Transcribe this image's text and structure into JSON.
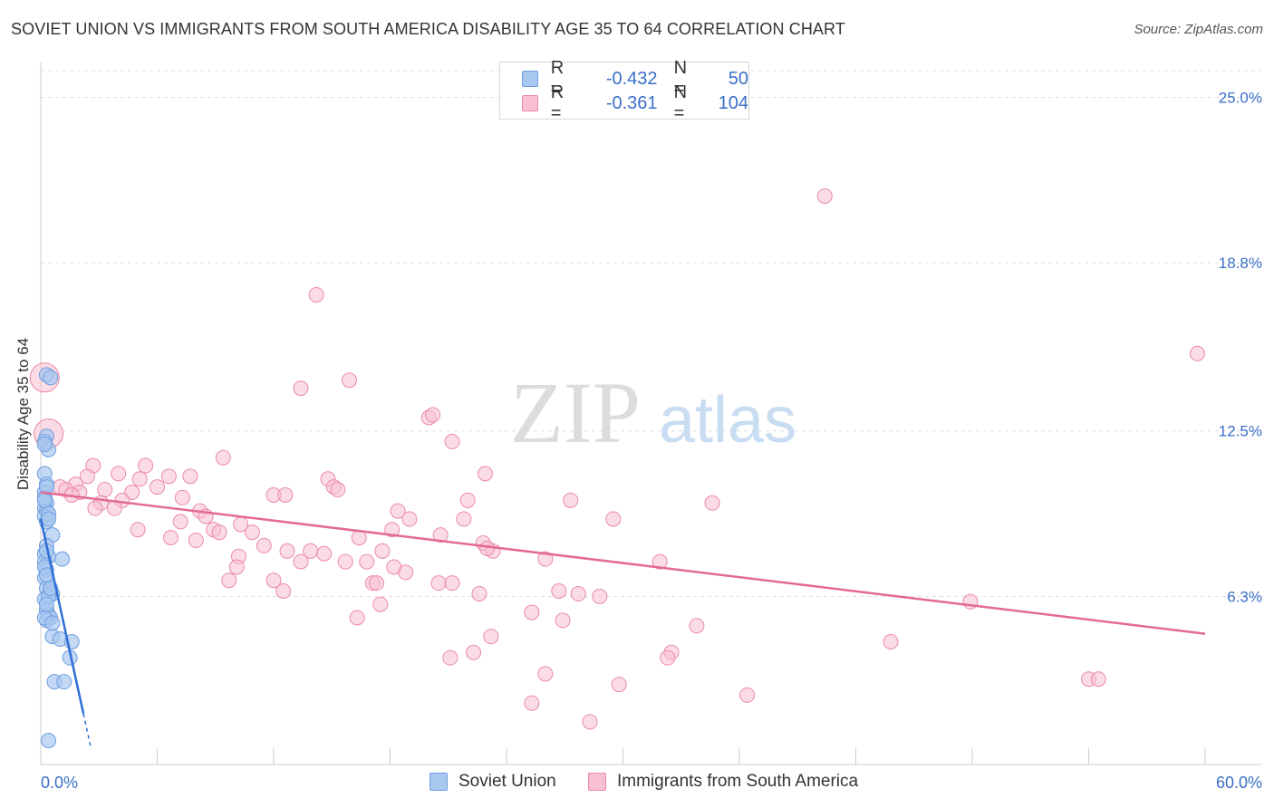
{
  "title": "SOVIET UNION VS IMMIGRANTS FROM SOUTH AMERICA DISABILITY AGE 35 TO 64 CORRELATION CHART",
  "source": "Source: ZipAtlas.com",
  "watermark": {
    "zip": "ZIP",
    "atlas": "atlas"
  },
  "legend": {
    "rows": [
      {
        "r_label": "R =",
        "r_value": "-0.432",
        "n_label": "N =",
        "n_value": "50",
        "color": "#a8c8f0",
        "border": "#6f9ee0"
      },
      {
        "r_label": "R =",
        "r_value": "-0.361",
        "n_label": "N =",
        "n_value": "104",
        "color": "#f8c0d0",
        "border": "#ea8aa8"
      }
    ]
  },
  "bottom_legend": [
    {
      "label": "Soviet Union",
      "color": "#a8c8f0",
      "border": "#6f9ee0"
    },
    {
      "label": "Immigrants from South America",
      "color": "#f8c0d0",
      "border": "#ea8aa8"
    }
  ],
  "chart_data": {
    "type": "scatter",
    "title": "SOVIET UNION VS IMMIGRANTS FROM SOUTH AMERICA DISABILITY AGE 35 TO 64 CORRELATION CHART",
    "xlabel": "",
    "ylabel": "Disability Age 35 to 64",
    "xlim": [
      0,
      60
    ],
    "ylim": [
      0,
      26
    ],
    "x_tick_labels": {
      "min": "0.0%",
      "max": "60.0%"
    },
    "y_ticks": [
      {
        "value": 6.3,
        "label": "6.3%"
      },
      {
        "value": 12.5,
        "label": "12.5%"
      },
      {
        "value": 18.8,
        "label": "18.8%"
      },
      {
        "value": 25.0,
        "label": "25.0%"
      }
    ],
    "grid": true,
    "series": [
      {
        "name": "Soviet Union",
        "color": "#6f9ee0",
        "fill": "#a8c8f0",
        "trend": {
          "x0": 0,
          "y0": 9.2,
          "x1": 2.2,
          "y1": 1.9,
          "dash_to_x": 2.6,
          "line_color": "#2d6fd6"
        },
        "points": [
          [
            0.3,
            14.6
          ],
          [
            0.5,
            14.5
          ],
          [
            0.3,
            12.3
          ],
          [
            0.2,
            12.1
          ],
          [
            0.4,
            11.8
          ],
          [
            0.2,
            10.9
          ],
          [
            0.3,
            10.5
          ],
          [
            0.2,
            10.2
          ],
          [
            0.3,
            9.8
          ],
          [
            0.2,
            9.6
          ],
          [
            0.3,
            9.5
          ],
          [
            0.2,
            9.3
          ],
          [
            0.3,
            9.1
          ],
          [
            0.6,
            8.6
          ],
          [
            0.3,
            8.2
          ],
          [
            0.2,
            7.9
          ],
          [
            0.4,
            7.8
          ],
          [
            0.2,
            7.6
          ],
          [
            1.1,
            7.7
          ],
          [
            0.3,
            7.3
          ],
          [
            0.2,
            7.0
          ],
          [
            0.3,
            6.6
          ],
          [
            0.5,
            6.5
          ],
          [
            0.6,
            6.4
          ],
          [
            0.2,
            6.2
          ],
          [
            0.3,
            5.8
          ],
          [
            0.4,
            5.6
          ],
          [
            0.5,
            5.5
          ],
          [
            0.3,
            5.4
          ],
          [
            0.6,
            4.8
          ],
          [
            1.0,
            4.7
          ],
          [
            1.6,
            4.6
          ],
          [
            1.5,
            4.0
          ],
          [
            0.7,
            3.1
          ],
          [
            1.2,
            3.1
          ],
          [
            0.4,
            0.9
          ],
          [
            0.2,
            10.0
          ],
          [
            0.2,
            9.9
          ],
          [
            0.3,
            8.0
          ],
          [
            0.4,
            6.3
          ],
          [
            0.2,
            5.5
          ],
          [
            0.3,
            10.4
          ],
          [
            0.4,
            9.4
          ],
          [
            0.2,
            7.4
          ],
          [
            0.5,
            6.6
          ],
          [
            0.3,
            7.1
          ],
          [
            0.6,
            5.3
          ],
          [
            0.2,
            12.0
          ],
          [
            0.4,
            9.2
          ],
          [
            0.3,
            6.0
          ]
        ]
      },
      {
        "name": "Immigrants from South America",
        "color": "#ea8aa8",
        "fill": "#f8c0d0",
        "trend": {
          "x0": 0,
          "y0": 10.2,
          "x1": 60,
          "y1": 4.9,
          "line_color": "#e36a93"
        },
        "points": [
          [
            40.4,
            21.3
          ],
          [
            14.2,
            17.6
          ],
          [
            59.6,
            15.4
          ],
          [
            15.9,
            14.4
          ],
          [
            13.4,
            14.1
          ],
          [
            20.0,
            13.0
          ],
          [
            20.2,
            13.1
          ],
          [
            21.2,
            12.1
          ],
          [
            9.4,
            11.5
          ],
          [
            2.7,
            11.2
          ],
          [
            5.4,
            11.2
          ],
          [
            22.9,
            10.9
          ],
          [
            2.4,
            10.8
          ],
          [
            4.0,
            10.9
          ],
          [
            5.1,
            10.7
          ],
          [
            6.6,
            10.8
          ],
          [
            7.7,
            10.8
          ],
          [
            14.8,
            10.7
          ],
          [
            15.1,
            10.4
          ],
          [
            15.3,
            10.3
          ],
          [
            1.8,
            10.5
          ],
          [
            1.0,
            10.4
          ],
          [
            1.3,
            10.3
          ],
          [
            2.0,
            10.2
          ],
          [
            3.3,
            10.3
          ],
          [
            4.7,
            10.2
          ],
          [
            6.0,
            10.4
          ],
          [
            1.6,
            10.1
          ],
          [
            3.1,
            9.8
          ],
          [
            4.2,
            9.9
          ],
          [
            7.3,
            10.0
          ],
          [
            12.0,
            10.1
          ],
          [
            12.6,
            10.1
          ],
          [
            22.0,
            9.9
          ],
          [
            27.3,
            9.9
          ],
          [
            34.6,
            9.8
          ],
          [
            2.8,
            9.6
          ],
          [
            3.8,
            9.6
          ],
          [
            8.2,
            9.5
          ],
          [
            8.5,
            9.3
          ],
          [
            18.4,
            9.5
          ],
          [
            19.0,
            9.2
          ],
          [
            21.8,
            9.2
          ],
          [
            29.5,
            9.2
          ],
          [
            7.2,
            9.1
          ],
          [
            10.3,
            9.0
          ],
          [
            18.1,
            8.8
          ],
          [
            5.0,
            8.8
          ],
          [
            8.9,
            8.8
          ],
          [
            9.2,
            8.7
          ],
          [
            10.9,
            8.7
          ],
          [
            16.4,
            8.5
          ],
          [
            20.6,
            8.6
          ],
          [
            6.7,
            8.5
          ],
          [
            8.0,
            8.4
          ],
          [
            11.5,
            8.2
          ],
          [
            22.8,
            8.3
          ],
          [
            23.3,
            8.0
          ],
          [
            12.7,
            8.0
          ],
          [
            13.9,
            8.0
          ],
          [
            17.6,
            8.0
          ],
          [
            10.2,
            7.8
          ],
          [
            14.6,
            7.9
          ],
          [
            23.0,
            8.1
          ],
          [
            26.0,
            7.7
          ],
          [
            31.9,
            7.6
          ],
          [
            10.1,
            7.4
          ],
          [
            13.4,
            7.6
          ],
          [
            15.7,
            7.6
          ],
          [
            16.8,
            7.6
          ],
          [
            18.2,
            7.4
          ],
          [
            18.8,
            7.2
          ],
          [
            9.7,
            6.9
          ],
          [
            12.0,
            6.9
          ],
          [
            17.1,
            6.8
          ],
          [
            17.3,
            6.8
          ],
          [
            20.5,
            6.8
          ],
          [
            21.2,
            6.8
          ],
          [
            12.5,
            6.5
          ],
          [
            22.6,
            6.4
          ],
          [
            26.7,
            6.5
          ],
          [
            27.7,
            6.4
          ],
          [
            28.8,
            6.3
          ],
          [
            47.9,
            6.1
          ],
          [
            17.5,
            6.0
          ],
          [
            25.3,
            5.7
          ],
          [
            16.3,
            5.5
          ],
          [
            26.9,
            5.4
          ],
          [
            33.8,
            5.2
          ],
          [
            23.2,
            4.8
          ],
          [
            43.8,
            4.6
          ],
          [
            32.5,
            4.2
          ],
          [
            32.3,
            4.0
          ],
          [
            22.3,
            4.2
          ],
          [
            21.1,
            4.0
          ],
          [
            26.0,
            3.4
          ],
          [
            29.8,
            3.0
          ],
          [
            54.0,
            3.2
          ],
          [
            54.5,
            3.2
          ],
          [
            36.4,
            2.6
          ],
          [
            25.3,
            2.3
          ],
          [
            28.3,
            1.6
          ],
          [
            0.2,
            14.5
          ],
          [
            0.4,
            12.4
          ]
        ]
      }
    ]
  }
}
